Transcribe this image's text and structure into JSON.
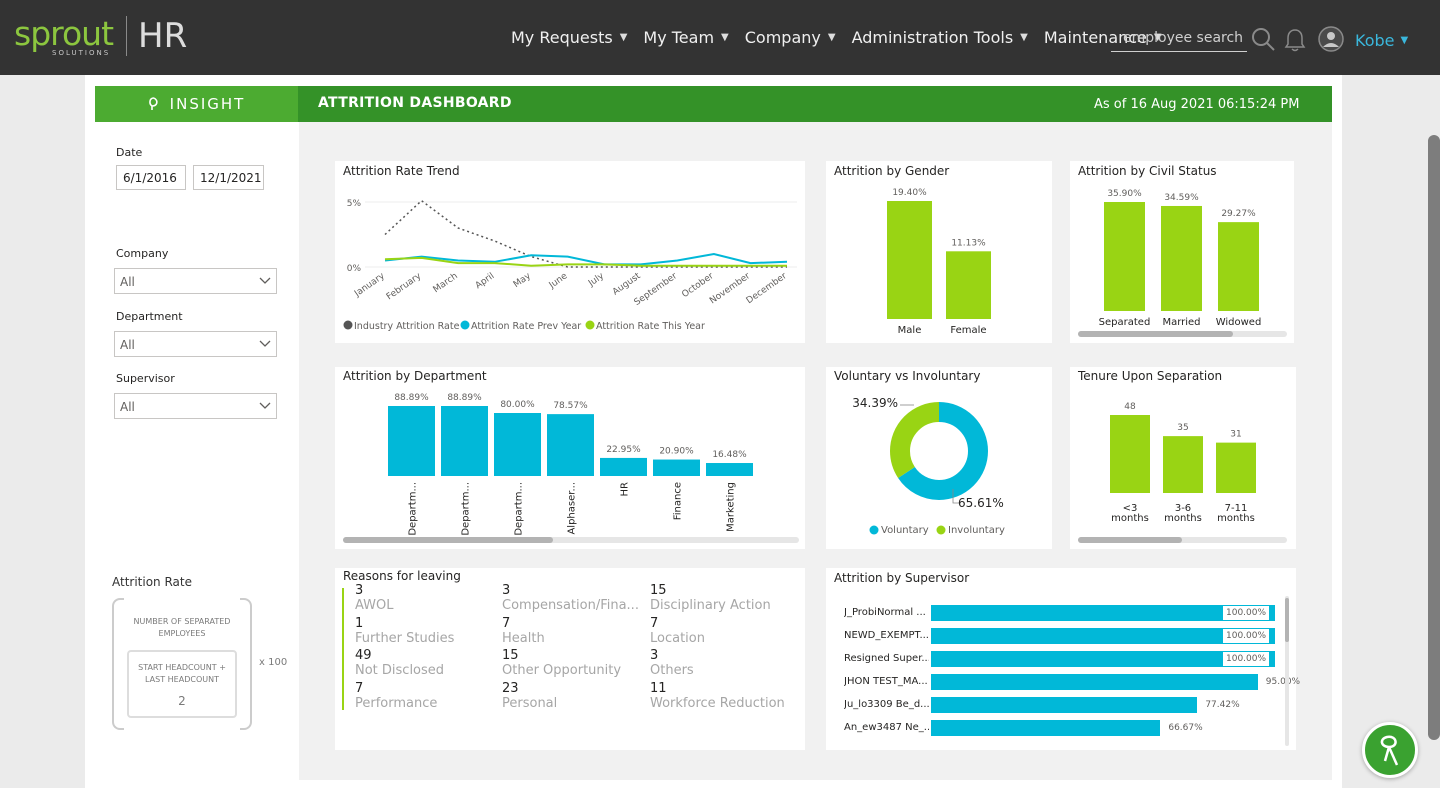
{
  "nav": {
    "logo_text": "sprout",
    "logo_sub": "SOLUTIONS",
    "logo_hr": "HR",
    "items": [
      {
        "label": "My Requests"
      },
      {
        "label": "My Team"
      },
      {
        "label": "Company"
      },
      {
        "label": "Administration Tools"
      },
      {
        "label": "Maintenance"
      }
    ],
    "search_placeholder": "employee search",
    "user": "Kobe"
  },
  "header": {
    "insight_label": "INSIGHT",
    "title": "ATTRITION DASHBOARD",
    "as_of": "As of 16 Aug 2021 06:15:24 PM"
  },
  "filters": {
    "date_label": "Date",
    "date_from": "6/1/2016",
    "date_to": "12/1/2021",
    "company_label": "Company",
    "company_value": "All",
    "department_label": "Department",
    "department_value": "All",
    "supervisor_label": "Supervisor",
    "supervisor_value": "All"
  },
  "attrition_rate": {
    "title": "Attrition Rate",
    "numerator": "NUMBER OF SEPARATED EMPLOYEES",
    "denominator": "START HEADCOUNT + LAST HEADCOUNT",
    "divisor": "2",
    "multiplier": "x 100"
  },
  "colors": {
    "green_bar": "#99d414",
    "teal": "#01b8d8",
    "dark_dot": "#555555",
    "header_green": "#349228",
    "insight_green": "#4cab31"
  },
  "chart_data": [
    {
      "type": "line",
      "title": "Attrition Rate Trend",
      "categories": [
        "January",
        "February",
        "March",
        "April",
        "May",
        "June",
        "July",
        "August",
        "September",
        "October",
        "November",
        "December"
      ],
      "y_ticks": [
        "5%",
        "0%"
      ],
      "ylim": [
        0,
        5
      ],
      "series": [
        {
          "name": "Industry Attrition Rate",
          "values": [
            2.5,
            5.1,
            3.0,
            2.0,
            0.8,
            0.0,
            0.0,
            0.0,
            0.0,
            0.0,
            0.0,
            0.0
          ]
        },
        {
          "name": "Attrition Rate Prev Year",
          "values": [
            0.5,
            0.8,
            0.5,
            0.4,
            0.9,
            0.8,
            0.2,
            0.2,
            0.5,
            1.0,
            0.3,
            0.4
          ]
        },
        {
          "name": "Attrition Rate This Year",
          "values": [
            0.6,
            0.7,
            0.3,
            0.3,
            0.1,
            0.2,
            0.2,
            0.1,
            0.1,
            0.1,
            0.1,
            0.1
          ]
        }
      ]
    },
    {
      "type": "bar",
      "title": "Attrition by Gender",
      "categories": [
        "Male",
        "Female"
      ],
      "values": [
        19.4,
        11.13
      ],
      "labels": [
        "19.40%",
        "11.13%"
      ]
    },
    {
      "type": "bar",
      "title": "Attrition by Civil Status",
      "categories": [
        "Separated",
        "Married",
        "Widowed"
      ],
      "values": [
        35.9,
        34.59,
        29.27
      ],
      "labels": [
        "35.90%",
        "34.59%",
        "29.27%"
      ]
    },
    {
      "type": "bar",
      "title": "Attrition by Department",
      "categories": [
        "Departm...",
        "Departm...",
        "Departm...",
        "Alphaser...",
        "HR",
        "Finance",
        "Marketing"
      ],
      "values": [
        88.89,
        88.89,
        80.0,
        78.57,
        22.95,
        20.9,
        16.48
      ],
      "labels": [
        "88.89%",
        "88.89%",
        "80.00%",
        "78.57%",
        "22.95%",
        "20.90%",
        "16.48%"
      ]
    },
    {
      "type": "pie",
      "title": "Voluntary vs Involuntary",
      "series": [
        {
          "name": "Voluntary",
          "value": 65.61,
          "label": "65.61%"
        },
        {
          "name": "Involuntary",
          "value": 34.39,
          "label": "34.39%"
        }
      ]
    },
    {
      "type": "bar",
      "title": "Tenure Upon Separation",
      "categories": [
        "<3 months",
        "3-6 months",
        "7-11 months"
      ],
      "categories_line1": [
        "<3",
        "3-6",
        "7-11"
      ],
      "categories_line2": [
        "months",
        "months",
        "months"
      ],
      "values": [
        48,
        35,
        31
      ],
      "labels": [
        "48",
        "35",
        "31"
      ]
    },
    {
      "type": "bar",
      "title": "Attrition by Supervisor",
      "categories": [
        "J_ProbiNormal ...",
        "NEWD_EXEMPT...",
        "Resigned Super...",
        "JHON TEST_MA...",
        "Ju_lo3309 Be_d...",
        "An_ew3487 Ne_..."
      ],
      "values": [
        100.0,
        100.0,
        100.0,
        95.0,
        77.42,
        66.67
      ],
      "labels": [
        "100.00%",
        "100.00%",
        "100.00%",
        "95.00%",
        "77.42%",
        "66.67%"
      ]
    }
  ],
  "reasons": {
    "title": "Reasons for leaving",
    "items": [
      {
        "count": "3",
        "label": "AWOL"
      },
      {
        "count": "3",
        "label": "Compensation/Fina..."
      },
      {
        "count": "15",
        "label": "Disciplinary Action"
      },
      {
        "count": "1",
        "label": "Further Studies"
      },
      {
        "count": "7",
        "label": "Health"
      },
      {
        "count": "7",
        "label": "Location"
      },
      {
        "count": "49",
        "label": "Not Disclosed"
      },
      {
        "count": "15",
        "label": "Other Opportunity"
      },
      {
        "count": "3",
        "label": "Others"
      },
      {
        "count": "7",
        "label": "Performance"
      },
      {
        "count": "23",
        "label": "Personal"
      },
      {
        "count": "11",
        "label": "Workforce Reduction"
      }
    ]
  }
}
